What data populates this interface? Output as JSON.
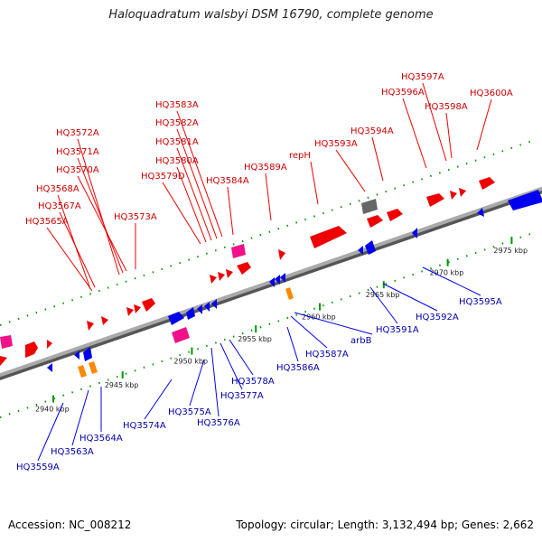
{
  "title": "Haloquadratum walsbyi DSM 16790, complete genome",
  "footer": {
    "accession_label": "Accession: NC_008212",
    "topology_label": "Topology: circular; Length: 3,132,494 bp; Genes: 2,662"
  },
  "ticks": [
    {
      "label": "2940 kbp",
      "t": 0.1
    },
    {
      "label": "2945 kbp",
      "t": 0.23
    },
    {
      "label": "2950 kbp",
      "t": 0.36
    },
    {
      "label": "2955 kbp",
      "t": 0.48
    },
    {
      "label": "2960 kbp",
      "t": 0.6
    },
    {
      "label": "2965 kbp",
      "t": 0.72
    },
    {
      "label": "2970 kbp",
      "t": 0.84
    },
    {
      "label": "2975 kbp",
      "t": 0.96
    }
  ],
  "top_genes": [
    {
      "label": "HQ3565A"
    },
    {
      "label": "HQ3567A"
    },
    {
      "label": "HQ3568A"
    },
    {
      "label": "HQ3570A"
    },
    {
      "label": "HQ3571A"
    },
    {
      "label": "HQ3572A"
    },
    {
      "label": "HQ3573A"
    },
    {
      "label": "HQ3579D"
    },
    {
      "label": "HQ3580A"
    },
    {
      "label": "HQ3581A"
    },
    {
      "label": "HQ3582A"
    },
    {
      "label": "HQ3583A"
    },
    {
      "label": "HQ3584A"
    },
    {
      "label": "HQ3589A"
    },
    {
      "label": "repH"
    },
    {
      "label": "HQ3593A"
    },
    {
      "label": "HQ3594A"
    },
    {
      "label": "HQ3596A"
    },
    {
      "label": "HQ3597A"
    },
    {
      "label": "HQ3598A"
    },
    {
      "label": "HQ3600A"
    }
  ],
  "bottom_genes": [
    {
      "label": "HQ3559A"
    },
    {
      "label": "HQ3563A"
    },
    {
      "label": "HQ3564A"
    },
    {
      "label": "HQ3574A"
    },
    {
      "label": "HQ3575A"
    },
    {
      "label": "HQ3576A"
    },
    {
      "label": "HQ3577A"
    },
    {
      "label": "HQ3578A"
    },
    {
      "label": "HQ3586A"
    },
    {
      "label": "HQ3587A"
    },
    {
      "label": "arbB"
    },
    {
      "label": "HQ3591A"
    },
    {
      "label": "HQ3592A"
    },
    {
      "label": "HQ3595A"
    }
  ],
  "colors": {
    "forward_gene": "#ee0000",
    "reverse_gene": "#0000ee",
    "rna_gene": "#ee1188",
    "pseudo_gene": "#666666",
    "other_gene": "#ff8800",
    "backbone": "#888888",
    "tick": "#009900"
  }
}
